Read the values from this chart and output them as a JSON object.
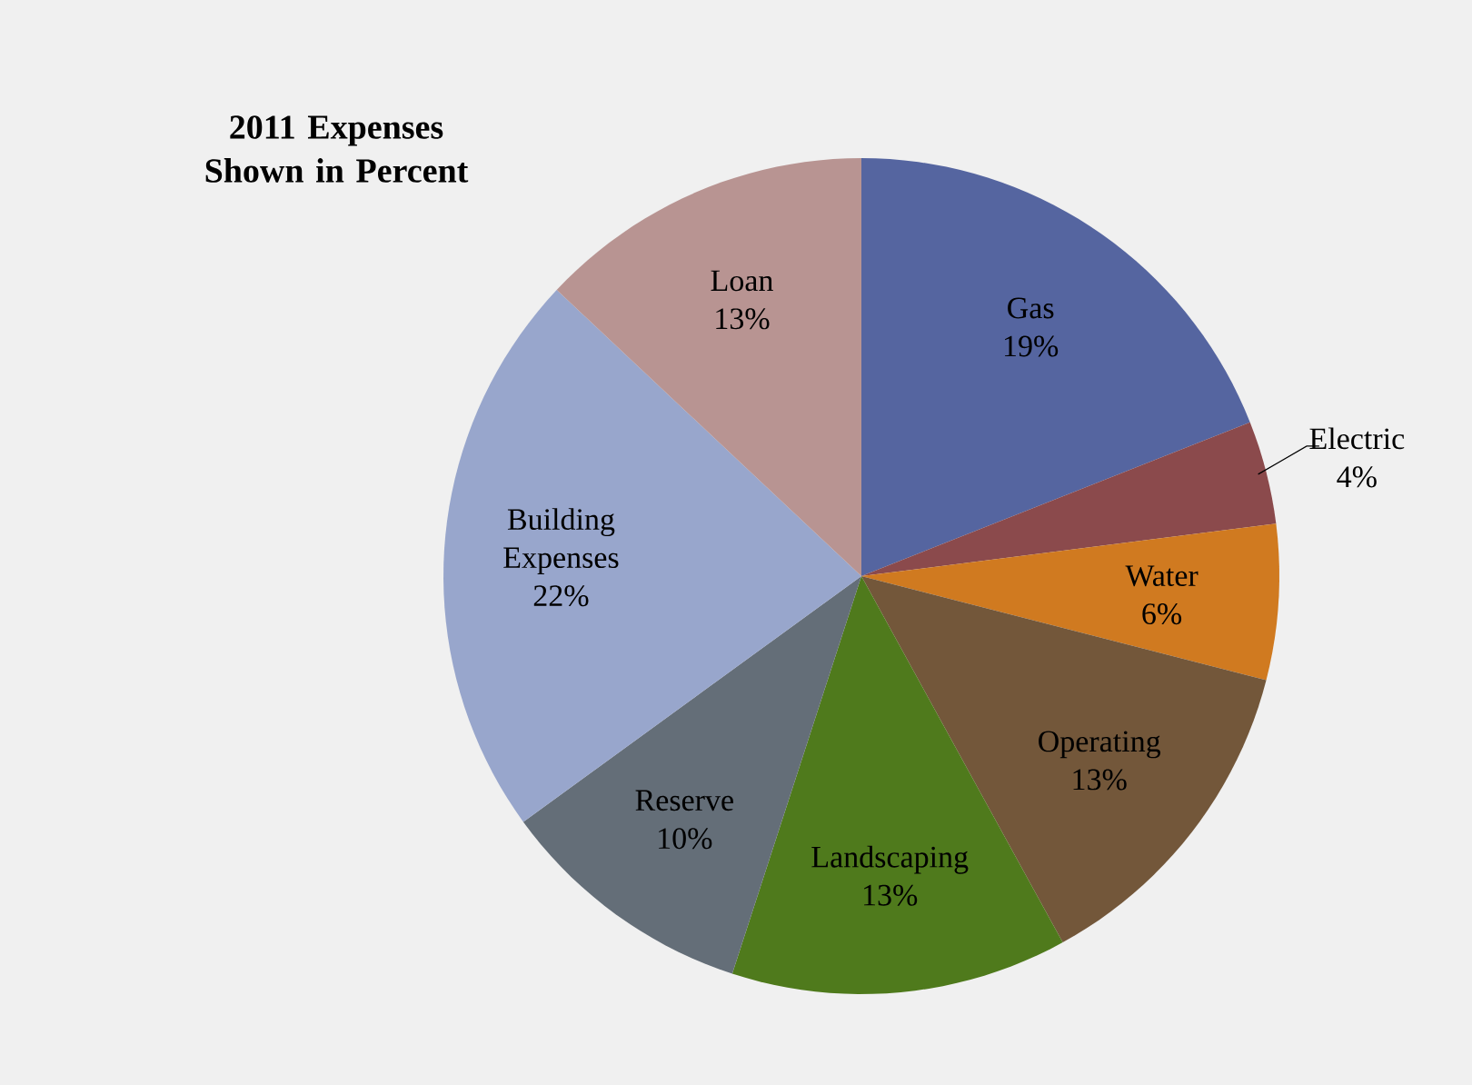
{
  "chart_data": {
    "type": "pie",
    "title": "2011 Expenses Shown in Percent",
    "categories": [
      "Gas",
      "Electric",
      "Water",
      "Operating",
      "Landscaping",
      "Reserve",
      "Building Expenses",
      "Loan"
    ],
    "values": [
      19,
      4,
      6,
      13,
      13,
      10,
      22,
      13
    ],
    "value_labels": [
      "19%",
      "4%",
      "6%",
      "13%",
      "13%",
      "10%",
      "22%",
      "13%"
    ],
    "colors": [
      "#5565a0",
      "#8b4a4c",
      "#d07a20",
      "#73573a",
      "#4f7a1c",
      "#646e78",
      "#98a6cc",
      "#b89492"
    ]
  }
}
